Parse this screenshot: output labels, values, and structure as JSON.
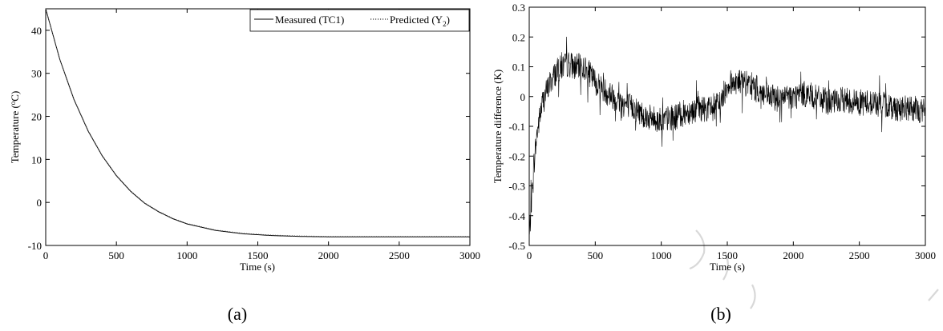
{
  "panels": [
    {
      "caption": "(a)"
    },
    {
      "caption": "(b)"
    }
  ],
  "chart_data": [
    {
      "type": "line",
      "xlabel": "Time (s)",
      "ylabel": "Temperature (°C)",
      "xlim": [
        0,
        3000
      ],
      "ylim": [
        -10,
        45
      ],
      "xticks": [
        "0",
        "500",
        "1000",
        "1500",
        "2000",
        "2500",
        "3000"
      ],
      "yticks": [
        "-10",
        "0",
        "10",
        "20",
        "30",
        "40"
      ],
      "grid": false,
      "legend_position": "top-right",
      "series": [
        {
          "name": "Measured (TC1)",
          "style": "solid",
          "x": [
            0,
            100,
            200,
            300,
            400,
            500,
            600,
            700,
            800,
            900,
            1000,
            1200,
            1400,
            1600,
            1800,
            2000,
            2200,
            2500,
            2800,
            3000
          ],
          "y": [
            45,
            33.2,
            23.9,
            16.6,
            10.8,
            6.2,
            2.6,
            -0.2,
            -2.2,
            -3.8,
            -5.0,
            -6.5,
            -7.3,
            -7.7,
            -7.9,
            -8.0,
            -8.0,
            -8.0,
            -8.0,
            -8.0
          ]
        },
        {
          "name": "Predicted (Y2)",
          "style": "dotted",
          "x": [
            0,
            100,
            200,
            300,
            400,
            500,
            600,
            700,
            800,
            900,
            1000,
            1200,
            1400,
            1600,
            1800,
            2000,
            2200,
            2500,
            2800,
            3000
          ],
          "y": [
            45,
            33.3,
            24.0,
            16.7,
            10.9,
            6.3,
            2.7,
            -0.1,
            -2.1,
            -3.7,
            -4.9,
            -6.4,
            -7.2,
            -7.6,
            -7.8,
            -7.9,
            -7.9,
            -7.9,
            -7.9,
            -7.9
          ]
        }
      ]
    },
    {
      "type": "line",
      "xlabel": "Time (s)",
      "ylabel": "Temperature difference (K)",
      "xlim": [
        0,
        3000
      ],
      "ylim": [
        -0.5,
        0.3
      ],
      "xticks": [
        "0",
        "500",
        "1000",
        "1500",
        "2000",
        "2500",
        "3000"
      ],
      "yticks": [
        "-0.5",
        "-0.4",
        "-0.3",
        "-0.2",
        "-0.1",
        "0",
        "0.1",
        "0.2",
        "0.3"
      ],
      "grid": false,
      "series": [
        {
          "style": "solid",
          "x": [
            0,
            30,
            60,
            100,
            150,
            200,
            250,
            300,
            350,
            400,
            450,
            500,
            600,
            700,
            800,
            900,
            1000,
            1100,
            1200,
            1300,
            1400,
            1450,
            1500,
            1550,
            1600,
            1700,
            1800,
            1900,
            2000,
            2100,
            2200,
            2300,
            2400,
            2500,
            2600,
            2700,
            2800,
            2900,
            3000
          ],
          "y": [
            -0.48,
            -0.25,
            -0.12,
            -0.02,
            0.04,
            0.08,
            0.1,
            0.11,
            0.1,
            0.1,
            0.08,
            0.05,
            0.01,
            -0.02,
            -0.04,
            -0.07,
            -0.08,
            -0.07,
            -0.05,
            -0.04,
            -0.04,
            -0.02,
            0.04,
            0.05,
            0.05,
            0.03,
            0.0,
            -0.01,
            0.0,
            0.01,
            -0.01,
            -0.02,
            -0.01,
            -0.02,
            -0.02,
            -0.03,
            -0.04,
            -0.04,
            -0.05
          ],
          "noise_amplitude": 0.045
        }
      ]
    }
  ]
}
